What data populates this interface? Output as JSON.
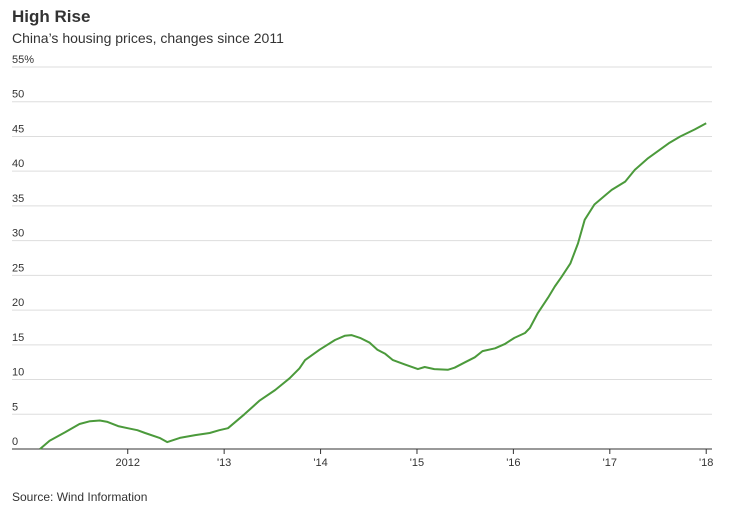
{
  "chart_data": {
    "type": "line",
    "title": "High Rise",
    "subtitle": "China’s housing prices, changes since 2011",
    "source": "Source: Wind Information",
    "x": [
      2011.09,
      2011.19,
      2011.35,
      2011.5,
      2011.61,
      2011.71,
      2011.79,
      2011.9,
      2012.0,
      2012.1,
      2012.18,
      2012.33,
      2012.41,
      2012.54,
      2012.7,
      2012.85,
      2012.95,
      2013.04,
      2013.21,
      2013.37,
      2013.53,
      2013.68,
      2013.78,
      2013.84,
      2013.99,
      2014.15,
      2014.25,
      2014.32,
      2014.41,
      2014.51,
      2014.59,
      2014.67,
      2014.75,
      2014.87,
      2015.01,
      2015.08,
      2015.18,
      2015.32,
      2015.39,
      2015.5,
      2015.6,
      2015.68,
      2015.81,
      2015.91,
      2016.01,
      2016.12,
      2016.17,
      2016.25,
      2016.36,
      2016.43,
      2016.5,
      2016.59,
      2016.67,
      2016.74,
      2016.84,
      2016.95,
      2017.02,
      2017.16,
      2017.26,
      2017.39,
      2017.52,
      2017.62,
      2017.73,
      2017.88,
      2018.0
    ],
    "series": [
      {
        "color": "#4b9a3b",
        "values": [
          0,
          1.2,
          2.4,
          3.6,
          4.0,
          4.1,
          3.9,
          3.3,
          3.0,
          2.7,
          2.3,
          1.6,
          1.0,
          1.6,
          2.0,
          2.3,
          2.7,
          3.0,
          5.0,
          7.0,
          8.5,
          10.2,
          11.6,
          12.8,
          14.3,
          15.7,
          16.3,
          16.4,
          16.0,
          15.3,
          14.3,
          13.7,
          12.8,
          12.2,
          11.5,
          11.8,
          11.5,
          11.4,
          11.7,
          12.5,
          13.2,
          14.1,
          14.5,
          15.1,
          16.0,
          16.7,
          17.4,
          19.5,
          21.8,
          23.4,
          24.8,
          26.7,
          29.6,
          33.0,
          35.2,
          36.5,
          37.3,
          38.5,
          40.2,
          41.8,
          43.1,
          44.1,
          45.0,
          46.0,
          46.9
        ]
      }
    ],
    "xlim": [
      2011.09,
      2018.06
    ],
    "xticks": [
      2012,
      {
        "value": 2013,
        "label": "'13"
      },
      {
        "value": 2014,
        "label": "'14"
      },
      {
        "value": 2015,
        "label": "'15"
      },
      {
        "value": 2016,
        "label": "'16"
      },
      {
        "value": 2017,
        "label": "'17"
      },
      {
        "value": 2018,
        "label": "'18"
      }
    ],
    "ylim": [
      0,
      55
    ],
    "yticks": [
      0,
      5,
      10,
      15,
      20,
      25,
      30,
      35,
      40,
      45,
      50,
      {
        "value": 55,
        "label": "55%"
      }
    ],
    "grid": true
  }
}
